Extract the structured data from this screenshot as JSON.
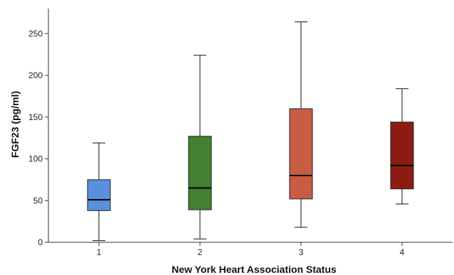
{
  "chart_data": {
    "type": "box",
    "title": "",
    "xlabel": "New York Heart Association Status",
    "ylabel": "FGF23 (pg/ml)",
    "ylim": [
      0,
      280
    ],
    "yticks": [
      0,
      50,
      100,
      150,
      200,
      250
    ],
    "grid": false,
    "legend": "none",
    "categories": [
      "1",
      "2",
      "3",
      "4"
    ],
    "boxes": [
      {
        "category": "1",
        "min": 2,
        "q1": 38,
        "median": 51,
        "q3": 75,
        "max": 119,
        "color": "#5b8fdc"
      },
      {
        "category": "2",
        "min": 4,
        "q1": 39,
        "median": 65,
        "q3": 127,
        "max": 224,
        "color": "#438031"
      },
      {
        "category": "3",
        "min": 18,
        "q1": 52,
        "median": 80,
        "q3": 160,
        "max": 264,
        "color": "#c95d43"
      },
      {
        "category": "4",
        "min": 46,
        "q1": 64,
        "median": 92,
        "q3": 144,
        "max": 184,
        "color": "#8c1b12"
      }
    ]
  }
}
